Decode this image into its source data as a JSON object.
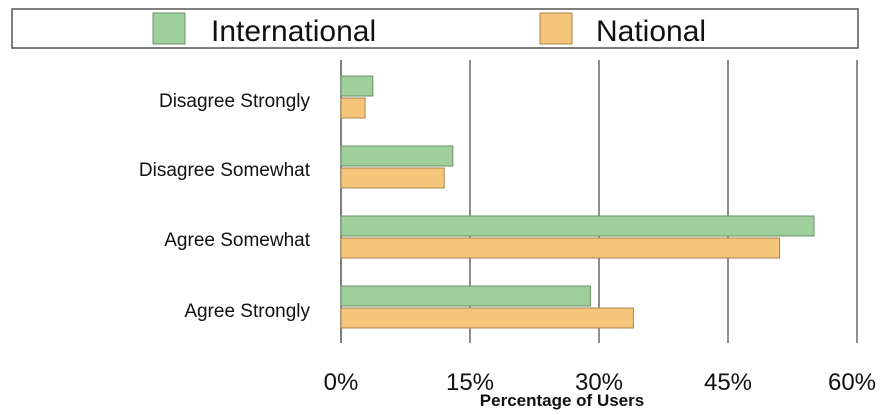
{
  "chart_data": {
    "type": "bar",
    "orientation": "horizontal",
    "categories": [
      "Disagree Strongly",
      "Disagree Somewhat",
      "Agree Somewhat",
      "Agree Strongly"
    ],
    "series": [
      {
        "name": "International",
        "color": "#9fcf9a",
        "values": [
          3.7,
          13.0,
          55.0,
          29.0
        ]
      },
      {
        "name": "National",
        "color": "#f5c57a",
        "values": [
          2.8,
          12.0,
          51.0,
          34.0
        ]
      }
    ],
    "xlabel": "Percentage of Users",
    "xlim": [
      0,
      60
    ],
    "xticks": [
      0,
      15,
      30,
      45,
      60
    ],
    "xtick_labels": [
      "0%",
      "15%",
      "30%",
      "45%",
      "60%"
    ],
    "grid": "vertical",
    "legend_position": "top"
  }
}
